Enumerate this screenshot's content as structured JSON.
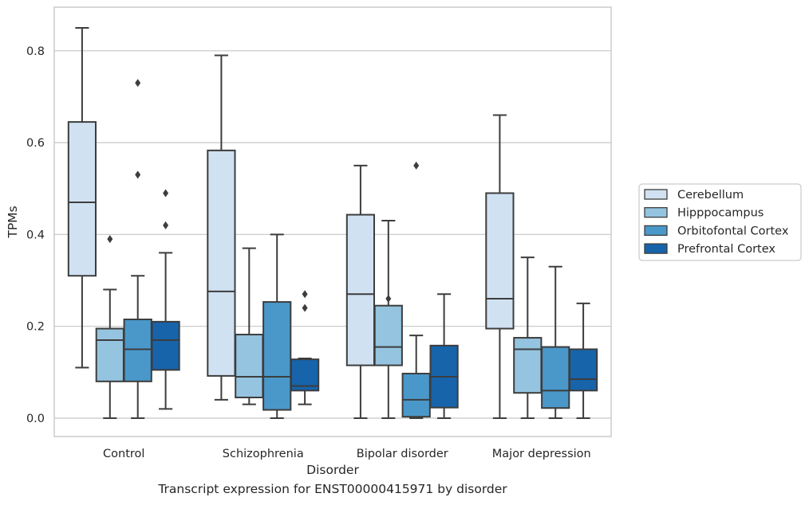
{
  "chart_data": {
    "type": "box",
    "title": "",
    "caption": "Transcript expression for ENST00000415971 by disorder",
    "xlabel": "Disorder",
    "ylabel": "TPMs",
    "ylim": [
      -0.04,
      0.895
    ],
    "yticks": [
      0.0,
      0.2,
      0.4,
      0.6,
      0.8
    ],
    "ytick_labels": [
      "0.0",
      "0.2",
      "0.4",
      "0.6",
      "0.8"
    ],
    "grid": "horizontal",
    "legend_position": "right",
    "categories": [
      "Control",
      "Schizophrenia",
      "Bipolar disorder",
      "Major depression"
    ],
    "series": [
      {
        "name": "Cerebellum",
        "color": "#d0e1f2",
        "boxes": [
          {
            "whislo": 0.11,
            "q1": 0.31,
            "med": 0.47,
            "q3": 0.645,
            "whishi": 0.85,
            "fliers": []
          },
          {
            "whislo": 0.04,
            "q1": 0.092,
            "med": 0.276,
            "q3": 0.583,
            "whishi": 0.79,
            "fliers": []
          },
          {
            "whislo": 0.0,
            "q1": 0.115,
            "med": 0.27,
            "q3": 0.443,
            "whishi": 0.55,
            "fliers": []
          },
          {
            "whislo": 0.0,
            "q1": 0.195,
            "med": 0.26,
            "q3": 0.49,
            "whishi": 0.66,
            "fliers": []
          }
        ]
      },
      {
        "name": "Hipppocampus",
        "color": "#94c4df",
        "boxes": [
          {
            "whislo": 0.0,
            "q1": 0.08,
            "med": 0.17,
            "q3": 0.195,
            "whishi": 0.28,
            "fliers": [
              0.39
            ]
          },
          {
            "whislo": 0.03,
            "q1": 0.045,
            "med": 0.09,
            "q3": 0.182,
            "whishi": 0.37,
            "fliers": []
          },
          {
            "whislo": 0.0,
            "q1": 0.115,
            "med": 0.155,
            "q3": 0.245,
            "whishi": 0.43,
            "fliers": [
              0.26
            ]
          },
          {
            "whislo": 0.0,
            "q1": 0.055,
            "med": 0.15,
            "q3": 0.175,
            "whishi": 0.35,
            "fliers": []
          }
        ]
      },
      {
        "name": "Orbitofontal Cortex",
        "color": "#4a98c9",
        "boxes": [
          {
            "whislo": 0.0,
            "q1": 0.08,
            "med": 0.15,
            "q3": 0.215,
            "whishi": 0.31,
            "fliers": [
              0.53,
              0.73
            ]
          },
          {
            "whislo": 0.0,
            "q1": 0.018,
            "med": 0.09,
            "q3": 0.253,
            "whishi": 0.4,
            "fliers": []
          },
          {
            "whislo": 0.0,
            "q1": 0.003,
            "med": 0.04,
            "q3": 0.097,
            "whishi": 0.18,
            "fliers": [
              0.55
            ]
          },
          {
            "whislo": 0.0,
            "q1": 0.022,
            "med": 0.06,
            "q3": 0.155,
            "whishi": 0.33,
            "fliers": []
          }
        ]
      },
      {
        "name": "Prefrontal Cortex",
        "color": "#1764ab",
        "boxes": [
          {
            "whislo": 0.02,
            "q1": 0.105,
            "med": 0.17,
            "q3": 0.21,
            "whishi": 0.36,
            "fliers": [
              0.42,
              0.49
            ]
          },
          {
            "whislo": 0.03,
            "q1": 0.06,
            "med": 0.07,
            "q3": 0.128,
            "whishi": 0.13,
            "fliers": [
              0.24,
              0.27
            ]
          },
          {
            "whislo": 0.0,
            "q1": 0.023,
            "med": 0.09,
            "q3": 0.158,
            "whishi": 0.27,
            "fliers": []
          },
          {
            "whislo": 0.0,
            "q1": 0.06,
            "med": 0.085,
            "q3": 0.15,
            "whishi": 0.25,
            "fliers": []
          }
        ]
      }
    ]
  }
}
